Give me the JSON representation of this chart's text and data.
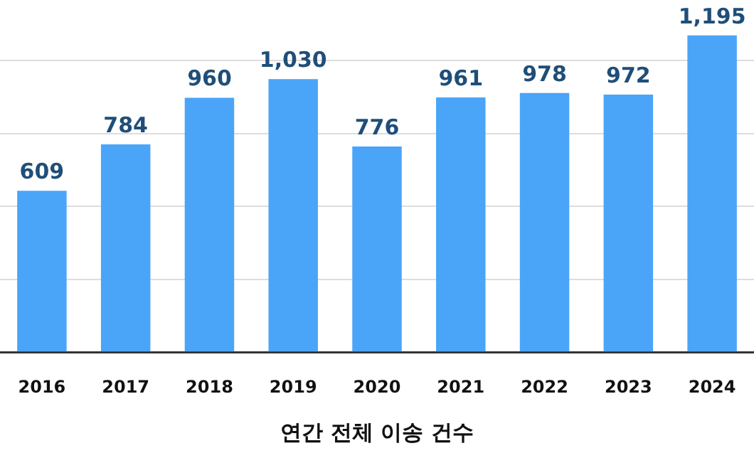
{
  "chart_data": {
    "type": "bar",
    "xlabel": "연간 전체 이송 건수",
    "categories": [
      "2016",
      "2017",
      "2018",
      "2019",
      "2020",
      "2021",
      "2022",
      "2023",
      "2024"
    ],
    "values": [
      609,
      784,
      960,
      1030,
      776,
      961,
      978,
      972,
      1195
    ],
    "value_labels": [
      "609",
      "784",
      "960",
      "1,030",
      "776",
      "961",
      "978",
      "972",
      "1,195"
    ],
    "color": "#4aa5f8",
    "yticks": [
      {
        "value": 0,
        "label": null
      },
      {
        "value": 275,
        "label": null
      },
      {
        "value": 550,
        "label": null
      },
      {
        "value": 825,
        "label": null
      },
      {
        "value": 1100,
        "label": null
      }
    ],
    "grid": "y",
    "tick_labels": "x"
  }
}
